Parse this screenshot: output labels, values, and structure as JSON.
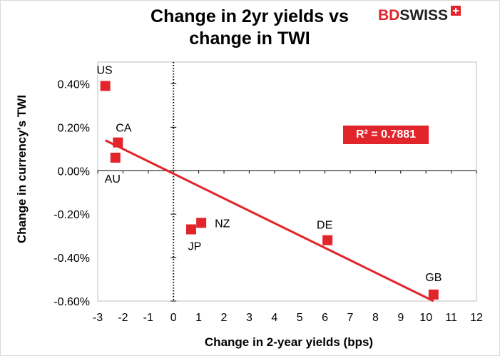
{
  "chart_data": {
    "type": "scatter",
    "title_lines": [
      "Change in 2yr yields vs",
      "change in TWI"
    ],
    "xlabel": "Change in 2-year yields (bps)",
    "ylabel": "Change in currency's  TWI",
    "xlim": [
      -3,
      12
    ],
    "ylim": [
      -0.006,
      0.005
    ],
    "x_ticks": [
      -3,
      -2,
      -1,
      0,
      1,
      2,
      3,
      4,
      5,
      6,
      7,
      8,
      9,
      10,
      11,
      12
    ],
    "x_tick_labels": [
      "-3",
      "-2",
      "-1",
      "0",
      "1",
      "2",
      "3",
      "4",
      "5",
      "6",
      "7",
      "8",
      "9",
      "10",
      "11",
      "12"
    ],
    "y_ticks": [
      0.004,
      0.002,
      0.0,
      -0.002,
      -0.004,
      -0.006
    ],
    "y_tick_labels": [
      "0.40%",
      "0.20%",
      "0.00%",
      "-0.20%",
      "-0.40%",
      "-0.60%"
    ],
    "points": [
      {
        "label": "US",
        "x": -2.7,
        "y": 0.0039
      },
      {
        "label": "CA",
        "x": -2.2,
        "y": 0.0013
      },
      {
        "label": "AU",
        "x": -2.3,
        "y": 0.0006
      },
      {
        "label": "JP",
        "x": 0.7,
        "y": -0.0027
      },
      {
        "label": "NZ",
        "x": 1.1,
        "y": -0.0024
      },
      {
        "label": "DE",
        "x": 6.1,
        "y": -0.0032
      },
      {
        "label": "GB",
        "x": 10.3,
        "y": -0.0057
      }
    ],
    "trendline": {
      "x": [
        -2.7,
        10.3
      ],
      "y": [
        0.0014,
        -0.006
      ]
    },
    "r_squared_label": "R² = 0.7881",
    "grid": false,
    "colors": {
      "marker": "#e2242b",
      "trendline": "#e2242b",
      "r2_box": "#e2242b"
    }
  },
  "brand": {
    "part1": "BD",
    "part2": "SWISS"
  }
}
